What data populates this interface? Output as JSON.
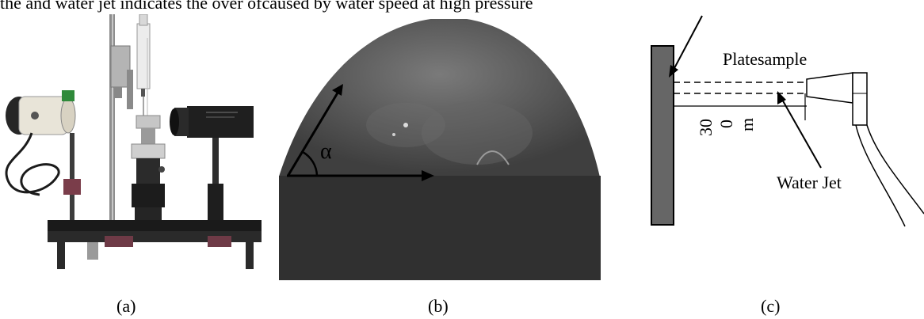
{
  "header_text": "the and water jet indicates the over ofcaused by water speed at high pressure",
  "panel_a": {
    "caption": "(a)"
  },
  "panel_b": {
    "caption": "(b)",
    "angle_label": "α"
  },
  "panel_c": {
    "caption": "(c)",
    "plate_label": "Platesample",
    "distance_label_parts": [
      "30",
      "0",
      "m"
    ],
    "jet_label": "Water Jet"
  },
  "colors": {
    "plate_fill": "#666666",
    "droplet_bg": "#3a3a3a",
    "droplet_dome": "#5c5c5c"
  }
}
